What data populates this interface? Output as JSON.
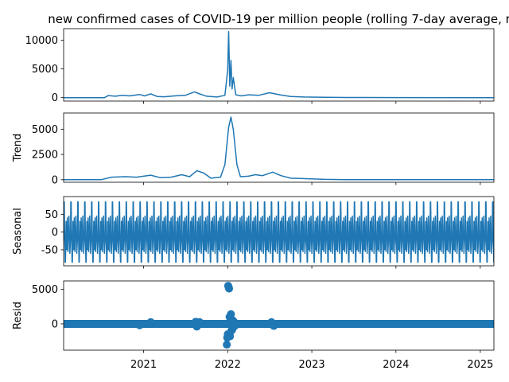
{
  "chart_data": {
    "type": "line",
    "title": "new confirmed cases of COVID-19 per million people (rolling 7-day average, r",
    "x_axis": {
      "type": "date",
      "range": [
        "2020-01-20",
        "2025-03-01"
      ],
      "ticks": [
        {
          "value": "2021-01-01",
          "label": "2021"
        },
        {
          "value": "2022-01-01",
          "label": "2022"
        },
        {
          "value": "2023-01-01",
          "label": "2023"
        },
        {
          "value": "2024-01-01",
          "label": "2024"
        },
        {
          "value": "2025-01-01",
          "label": "2025"
        }
      ]
    },
    "line_color": "#1f77b4",
    "panels": [
      {
        "key": "observed",
        "ylabel": "",
        "ylim": [
          -600,
          12000
        ],
        "yticks": [
          0,
          5000,
          10000
        ],
        "style": "line",
        "points": [
          [
            "2020-01-20",
            0
          ],
          [
            "2020-07-15",
            0
          ],
          [
            "2020-08-01",
            350
          ],
          [
            "2020-09-01",
            250
          ],
          [
            "2020-10-01",
            400
          ],
          [
            "2020-11-01",
            300
          ],
          [
            "2020-12-15",
            550
          ],
          [
            "2021-01-05",
            300
          ],
          [
            "2021-02-01",
            650
          ],
          [
            "2021-03-01",
            200
          ],
          [
            "2021-04-01",
            150
          ],
          [
            "2021-05-15",
            300
          ],
          [
            "2021-07-01",
            400
          ],
          [
            "2021-08-10",
            1000
          ],
          [
            "2021-09-01",
            650
          ],
          [
            "2021-10-01",
            250
          ],
          [
            "2021-11-15",
            100
          ],
          [
            "2021-12-20",
            400
          ],
          [
            "2022-01-01",
            4800
          ],
          [
            "2022-01-05",
            11500
          ],
          [
            "2022-01-10",
            2000
          ],
          [
            "2022-01-15",
            6500
          ],
          [
            "2022-01-20",
            1500
          ],
          [
            "2022-01-25",
            3500
          ],
          [
            "2022-02-05",
            500
          ],
          [
            "2022-03-01",
            300
          ],
          [
            "2022-04-01",
            500
          ],
          [
            "2022-05-15",
            400
          ],
          [
            "2022-07-01",
            850
          ],
          [
            "2022-08-15",
            500
          ],
          [
            "2022-10-01",
            200
          ],
          [
            "2022-12-01",
            100
          ],
          [
            "2023-03-01",
            60
          ],
          [
            "2023-06-01",
            30
          ],
          [
            "2023-09-01",
            20
          ],
          [
            "2024-01-01",
            10
          ],
          [
            "2025-03-01",
            0
          ]
        ]
      },
      {
        "key": "trend",
        "ylabel": "Trend",
        "ylim": [
          -250,
          6600
        ],
        "yticks": [
          0,
          2500,
          5000
        ],
        "style": "line",
        "points": [
          [
            "2020-01-20",
            0
          ],
          [
            "2020-07-01",
            0
          ],
          [
            "2020-08-15",
            250
          ],
          [
            "2020-10-15",
            300
          ],
          [
            "2020-12-01",
            250
          ],
          [
            "2021-02-01",
            450
          ],
          [
            "2021-03-15",
            200
          ],
          [
            "2021-05-01",
            250
          ],
          [
            "2021-06-15",
            500
          ],
          [
            "2021-07-20",
            300
          ],
          [
            "2021-08-20",
            900
          ],
          [
            "2021-09-20",
            650
          ],
          [
            "2021-10-20",
            150
          ],
          [
            "2021-12-01",
            250
          ],
          [
            "2021-12-20",
            1500
          ],
          [
            "2022-01-05",
            5200
          ],
          [
            "2022-01-15",
            6200
          ],
          [
            "2022-01-25",
            5000
          ],
          [
            "2022-02-10",
            1500
          ],
          [
            "2022-02-25",
            300
          ],
          [
            "2022-04-01",
            350
          ],
          [
            "2022-05-01",
            500
          ],
          [
            "2022-06-01",
            400
          ],
          [
            "2022-07-15",
            750
          ],
          [
            "2022-08-20",
            400
          ],
          [
            "2022-10-01",
            150
          ],
          [
            "2022-12-15",
            100
          ],
          [
            "2023-03-01",
            30
          ],
          [
            "2023-06-01",
            10
          ],
          [
            "2025-03-01",
            0
          ]
        ]
      },
      {
        "key": "seasonal",
        "ylabel": "Seasonal",
        "ylim": [
          -95,
          100
        ],
        "yticks": [
          -50,
          0,
          50
        ],
        "style": "line",
        "period_days": 30,
        "cycle_profile": [
          [
            0.0,
            -20
          ],
          [
            0.04,
            85
          ],
          [
            0.09,
            85
          ],
          [
            0.13,
            20
          ],
          [
            0.18,
            -40
          ],
          [
            0.22,
            -85
          ],
          [
            0.27,
            -85
          ],
          [
            0.31,
            -30
          ],
          [
            0.36,
            30
          ],
          [
            0.4,
            -10
          ],
          [
            0.45,
            -50
          ],
          [
            0.5,
            0
          ],
          [
            0.54,
            40
          ],
          [
            0.59,
            -10
          ],
          [
            0.63,
            -55
          ],
          [
            0.68,
            -20
          ],
          [
            0.72,
            0
          ],
          [
            0.77,
            45
          ],
          [
            0.81,
            20
          ],
          [
            0.86,
            -30
          ],
          [
            0.9,
            -60
          ],
          [
            0.95,
            -40
          ],
          [
            1.0,
            -20
          ]
        ]
      },
      {
        "key": "resid",
        "ylabel": "Resid",
        "ylim": [
          -3800,
          6200
        ],
        "yticks": [
          0,
          5000
        ],
        "style": "scatter",
        "points": [
          [
            "2021-12-28",
            -3000
          ],
          [
            "2021-12-30",
            -2000
          ],
          [
            "2022-01-01",
            -1500
          ],
          [
            "2022-01-03",
            5500
          ],
          [
            "2022-01-05",
            5300
          ],
          [
            "2022-01-07",
            5100
          ],
          [
            "2022-01-09",
            1000
          ],
          [
            "2022-01-11",
            -1800
          ],
          [
            "2022-01-13",
            800
          ],
          [
            "2022-01-15",
            1400
          ],
          [
            "2022-01-17",
            -1000
          ],
          [
            "2022-01-19",
            600
          ],
          [
            "2022-01-21",
            -800
          ],
          [
            "2022-01-23",
            500
          ],
          [
            "2022-01-25",
            -500
          ],
          [
            "2022-01-28",
            300
          ],
          [
            "2022-02-01",
            -300
          ],
          [
            "2021-08-15",
            300
          ],
          [
            "2021-08-20",
            -400
          ],
          [
            "2021-09-01",
            250
          ],
          [
            "2022-07-10",
            250
          ],
          [
            "2022-07-20",
            -300
          ],
          [
            "2021-02-01",
            250
          ],
          [
            "2020-12-15",
            -200
          ]
        ]
      }
    ]
  }
}
